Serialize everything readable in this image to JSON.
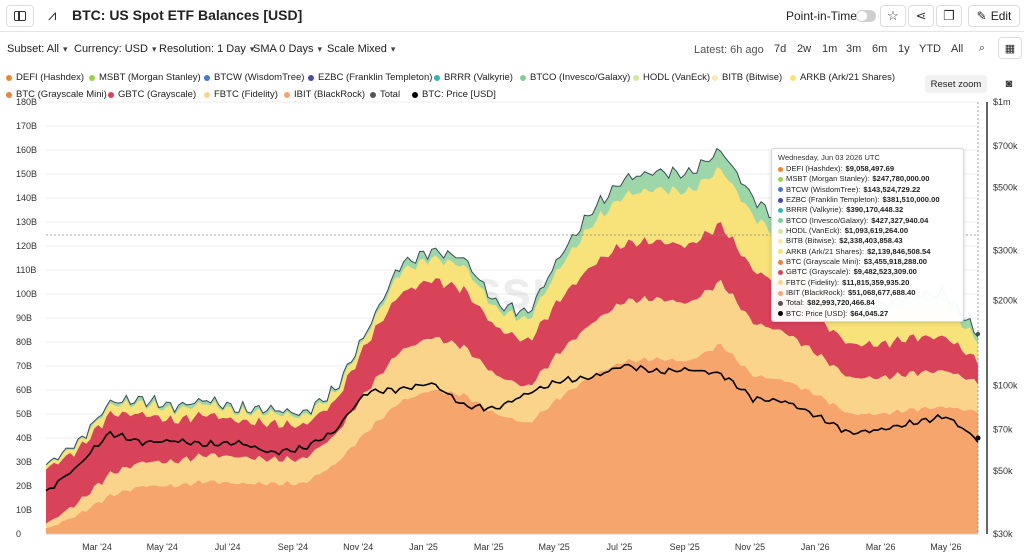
{
  "header": {
    "title": "BTC: US Spot ETF Balances [USD]",
    "point_in_time_label": "Point-in-Time",
    "edit_label": "Edit"
  },
  "toolbar": {
    "subset": "Subset: All",
    "currency": "Currency: USD",
    "resolution": "Resolution: 1 Day",
    "sma": "SMA 0 Days",
    "scale": "Scale Mixed",
    "latest": "Latest: 6h ago",
    "ranges": [
      "7d",
      "2w",
      "1m",
      "3m",
      "6m",
      "1y",
      "YTD",
      "All"
    ]
  },
  "legend": [
    {
      "label": "DEFI (Hashdex)",
      "color": "#e8892e"
    },
    {
      "label": "MSBT (Morgan Stanley)",
      "color": "#9bd14a"
    },
    {
      "label": "BTCW (WisdomTree)",
      "color": "#4a78c8"
    },
    {
      "label": "EZBC (Franklin Templeton)",
      "color": "#4a4aa8"
    },
    {
      "label": "BRRR (Valkyrie)",
      "color": "#36b7b7"
    },
    {
      "label": "BTCO (Invesco/Galaxy)",
      "color": "#7fcf9a"
    },
    {
      "label": "HODL (VanEck)",
      "color": "#d7e89a"
    },
    {
      "label": "BITB (Bitwise)",
      "color": "#fbeab0"
    },
    {
      "label": "ARKB (Ark/21 Shares)",
      "color": "#f8e27a"
    },
    {
      "label": "BTC (Grayscale Mini)",
      "color": "#e9823d"
    },
    {
      "label": "GBTC (Grayscale)",
      "color": "#d8435a"
    },
    {
      "label": "FBTC (Fidelity)",
      "color": "#f9d48a"
    },
    {
      "label": "IBIT (BlackRock)",
      "color": "#f6a66c"
    },
    {
      "label": "Total",
      "color": "#555555"
    },
    {
      "label": "BTC: Price [USD]",
      "color": "#000000"
    }
  ],
  "buttons": {
    "reset_zoom": "Reset zoom"
  },
  "watermark": "glassnode",
  "tooltip": {
    "date": "Wednesday, Jun 03 2026 UTC",
    "rows": [
      {
        "label": "DEFI (Hashdex):",
        "value": "$9,058,497.69",
        "color": "#e8892e"
      },
      {
        "label": "MSBT (Morgan Stanley):",
        "value": "$247,780,000.00",
        "color": "#9bd14a"
      },
      {
        "label": "BTCW (WisdomTree):",
        "value": "$143,524,729.22",
        "color": "#4a78c8"
      },
      {
        "label": "EZBC (Franklin Templeton):",
        "value": "$381,510,000.00",
        "color": "#4a4aa8"
      },
      {
        "label": "BRRR (Valkyrie):",
        "value": "$390,170,448.32",
        "color": "#36b7b7"
      },
      {
        "label": "BTCO (Invesco/Galaxy):",
        "value": "$427,327,940.04",
        "color": "#7fcf9a"
      },
      {
        "label": "HODL (VanEck):",
        "value": "$1,093,619,264.00",
        "color": "#d7e89a"
      },
      {
        "label": "BITB (Bitwise):",
        "value": "$2,338,403,858.43",
        "color": "#fbeab0"
      },
      {
        "label": "ARKB (Ark/21 Shares):",
        "value": "$2,139,846,508.54",
        "color": "#f8e27a"
      },
      {
        "label": "BTC (Grayscale Mini):",
        "value": "$3,455,918,288.00",
        "color": "#e9823d"
      },
      {
        "label": "GBTC (Grayscale):",
        "value": "$9,482,523,309.00",
        "color": "#d8435a"
      },
      {
        "label": "FBTC (Fidelity):",
        "value": "$11,815,359,935.20",
        "color": "#f9d48a"
      },
      {
        "label": "IBIT (BlackRock):",
        "value": "$51,068,677,688.40",
        "color": "#f6a66c"
      },
      {
        "label": "Total:",
        "value": "$82,993,720,466.84",
        "color": "#555555"
      },
      {
        "label": "BTC: Price [USD]:",
        "value": "$64,045.27",
        "color": "#000000"
      }
    ]
  },
  "chart_data": {
    "type": "area",
    "stacked": true,
    "x_ticks": [
      "Mar '24",
      "May '24",
      "Jul '24",
      "Sep '24",
      "Nov '24",
      "Jan '25",
      "Mar '25",
      "May '25",
      "Jul '25",
      "Sep '25",
      "Nov '25",
      "Jan '26",
      "Mar '26",
      "May '26"
    ],
    "y_left": {
      "ticks": [
        "0",
        "10B",
        "20B",
        "30B",
        "40B",
        "50B",
        "60B",
        "70B",
        "80B",
        "90B",
        "100B",
        "110B",
        "120B",
        "130B",
        "140B",
        "150B",
        "160B",
        "170B",
        "180B"
      ],
      "range": [
        0,
        180
      ]
    },
    "y_right": {
      "scale": "log",
      "ticks": [
        "$1m",
        "$700k",
        "$500k",
        "$300k",
        "$200k",
        "$100k",
        "$70k",
        "$50k",
        "$30k"
      ]
    },
    "grid": true,
    "legend_position": "top",
    "series_in_billions": {
      "months": [
        "Jan '24",
        "Feb '24",
        "Mar '24",
        "Apr '24",
        "May '24",
        "Jun '24",
        "Jul '24",
        "Aug '24",
        "Sep '24",
        "Oct '24",
        "Nov '24",
        "Dec '24",
        "Jan '25",
        "Feb '25",
        "Mar '25",
        "Apr '25",
        "May '25",
        "Jun '25",
        "Jul '25",
        "Aug '25",
        "Sep '25",
        "Oct '25",
        "Nov '25",
        "Dec '25",
        "Jan '26",
        "Feb '26",
        "Mar '26",
        "Apr '26",
        "May '26",
        "Jun '26"
      ],
      "total": [
        27,
        38,
        55,
        56,
        53,
        56,
        52,
        52,
        50,
        60,
        85,
        112,
        118,
        115,
        96,
        92,
        116,
        135,
        148,
        151,
        150,
        160,
        140,
        128,
        105,
        96,
        95,
        100,
        100,
        83
      ],
      "ibit": [
        2,
        8,
        16,
        20,
        20,
        22,
        21,
        21,
        21,
        29,
        43,
        55,
        60,
        58,
        50,
        46,
        57,
        66,
        72,
        73,
        72,
        79,
        66,
        64,
        58,
        50,
        50,
        52,
        53,
        51
      ],
      "fbtc": [
        2,
        5,
        9,
        10,
        10,
        11,
        11,
        10,
        10,
        12,
        17,
        21,
        22,
        20,
        16,
        15,
        19,
        22,
        25,
        25,
        24,
        26,
        22,
        20,
        17,
        15,
        15,
        15,
        15,
        12
      ],
      "gbtc": [
        23,
        22,
        25,
        20,
        17,
        17,
        15,
        15,
        14,
        14,
        20,
        24,
        24,
        24,
        20,
        19,
        22,
        24,
        24,
        24,
        24,
        24,
        22,
        19,
        15,
        14,
        14,
        15,
        14,
        9
      ],
      "btc_price_usd": [
        42000,
        52000,
        68000,
        63000,
        64000,
        62000,
        63000,
        58000,
        60000,
        69000,
        95000,
        97000,
        102000,
        85000,
        83000,
        94000,
        104000,
        107000,
        118000,
        112000,
        114000,
        110000,
        90000,
        88000,
        78000,
        68000,
        70000,
        74000,
        78000,
        64045
      ]
    }
  }
}
